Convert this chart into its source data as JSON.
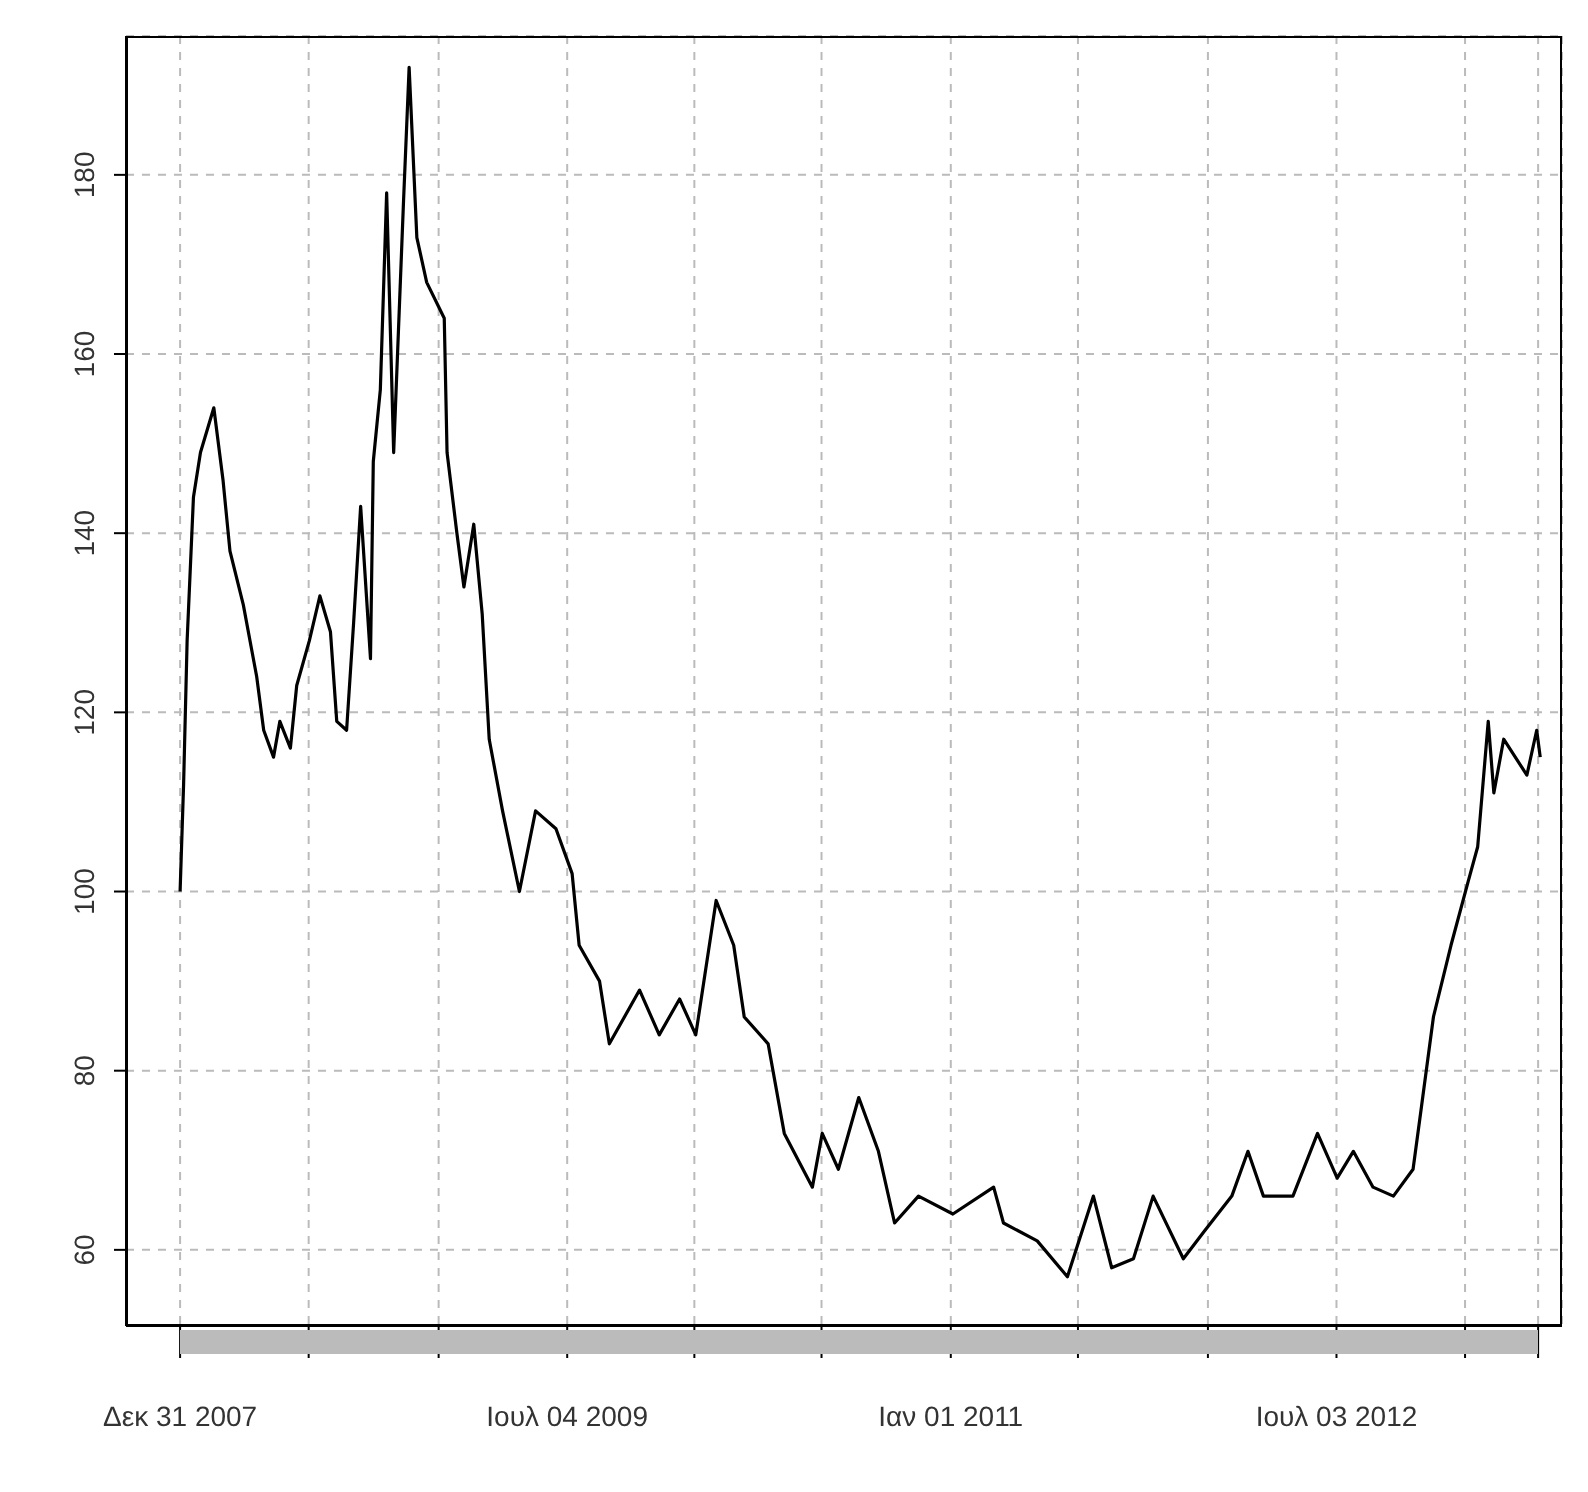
{
  "chart_data": {
    "type": "line",
    "grid": true,
    "xlim": [
      "2007-10-15",
      "2013-05-20"
    ],
    "xticks": [
      {
        "value": "2007-12-31",
        "label": "Δεκ 31 2007"
      },
      {
        "value": "2008-07-01",
        "label": null
      },
      {
        "value": "2009-01-02",
        "label": null
      },
      {
        "value": "2009-07-04",
        "label": "Ιουλ 04 2009"
      },
      {
        "value": "2010-01-01",
        "label": null
      },
      {
        "value": "2010-07-01",
        "label": null
      },
      {
        "value": "2011-01-01",
        "label": "Ιαν 01 2011"
      },
      {
        "value": "2011-07-01",
        "label": null
      },
      {
        "value": "2012-01-02",
        "label": null
      },
      {
        "value": "2012-07-03",
        "label": "Ιουλ 03 2012"
      },
      {
        "value": "2013-01-02",
        "label": null
      },
      {
        "value": "2013-04-16",
        "label": null
      }
    ],
    "ylim": [
      51.5,
      195.5
    ],
    "yticks": [
      60,
      80,
      100,
      120,
      140,
      160,
      180
    ],
    "x": [
      "2007-12-31",
      "2008-01-05",
      "2008-01-10",
      "2008-01-19",
      "2008-01-29",
      "2008-02-17",
      "2008-03-01",
      "2008-03-11",
      "2008-03-30",
      "2008-04-18",
      "2008-04-28",
      "2008-05-12",
      "2008-05-21",
      "2008-06-05",
      "2008-06-14",
      "2008-07-02",
      "2008-07-17",
      "2008-08-01",
      "2008-08-10",
      "2008-08-24",
      "2008-09-03",
      "2008-09-13",
      "2008-09-27",
      "2008-10-01",
      "2008-10-11",
      "2008-10-20",
      "2008-10-30",
      "2008-11-13",
      "2008-11-21",
      "2008-12-02",
      "2008-12-16",
      "2009-01-10",
      "2009-01-14",
      "2009-01-28",
      "2009-02-07",
      "2009-02-21",
      "2009-03-05",
      "2009-03-15",
      "2009-04-03",
      "2009-04-27",
      "2009-05-20",
      "2009-06-18",
      "2009-07-11",
      "2009-07-21",
      "2009-08-19",
      "2009-09-02",
      "2009-10-15",
      "2009-11-12",
      "2009-12-11",
      "2010-01-03",
      "2010-02-01",
      "2010-02-26",
      "2010-03-13",
      "2010-04-16",
      "2010-05-09",
      "2010-06-18",
      "2010-07-02",
      "2010-07-25",
      "2010-08-23",
      "2010-09-20",
      "2010-10-13",
      "2010-11-16",
      "2011-01-04",
      "2011-03-03",
      "2011-03-17",
      "2011-05-04",
      "2011-06-16",
      "2011-07-23",
      "2011-08-18",
      "2011-09-18",
      "2011-10-16",
      "2011-11-28",
      "2011-12-27",
      "2012-02-05",
      "2012-02-28",
      "2012-03-21",
      "2012-05-02",
      "2012-06-06",
      "2012-07-04",
      "2012-07-27",
      "2012-08-24",
      "2012-09-22",
      "2012-10-20",
      "2012-11-01",
      "2012-11-18",
      "2012-12-13",
      "2013-01-06",
      "2013-01-20",
      "2013-02-04",
      "2013-02-12",
      "2013-02-26",
      "2013-03-31",
      "2013-04-14",
      "2013-04-19"
    ],
    "series": [
      {
        "color": "#000000",
        "values": [
          100,
          112,
          128,
          144,
          149,
          154,
          146,
          138,
          132,
          124,
          118,
          115,
          119,
          116,
          123,
          128,
          133,
          129,
          119,
          118,
          130,
          143,
          126,
          148,
          156,
          178,
          149,
          177,
          192,
          173,
          168,
          164,
          149,
          140,
          134,
          141,
          131,
          117,
          109,
          100,
          109,
          107,
          102,
          94,
          90,
          83,
          89,
          84,
          88,
          84,
          99,
          94,
          86,
          83,
          73,
          67,
          73,
          69,
          77,
          71,
          63,
          66,
          64,
          67,
          63,
          61,
          57,
          66,
          58,
          59,
          66,
          59,
          62,
          66,
          71,
          66,
          66,
          73,
          68,
          71,
          67,
          66,
          69,
          76,
          86,
          94,
          101,
          105,
          119,
          111,
          117,
          113,
          118,
          115
        ]
      }
    ]
  }
}
